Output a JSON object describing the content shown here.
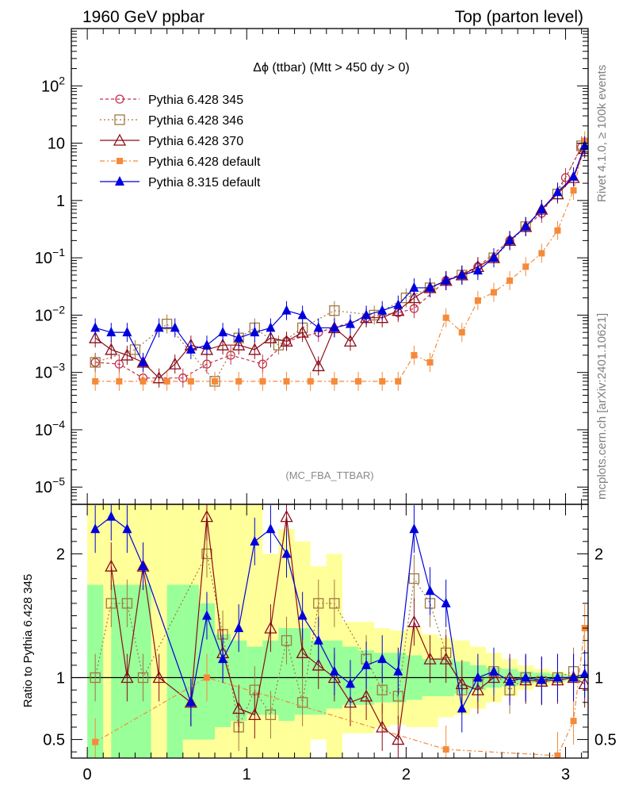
{
  "header": {
    "left": "1960 GeV ppbar",
    "right": "Top (parton level)"
  },
  "side_labels": {
    "rivet": "Rivet 4.1.0, ≥ 100k events",
    "mcplots": "mcplots.cern.ch [arXiv:2401.10621]"
  },
  "chart_data": {
    "type": "line",
    "title": "Δϕ (ttbar) (Mtt > 450 dy > 0)",
    "analysis_label": "(MC_FBA_TTBAR)",
    "x_range": [
      -0.1,
      3.1416
    ],
    "y_range": [
      5e-06,
      1000
    ],
    "y_scale": "log",
    "ratio_range": [
      0.35,
      2.4
    ],
    "ratio_ylabel": "Ratio to Pythia 6.428 345",
    "x_ticks": [
      "0",
      "1",
      "2",
      "3"
    ],
    "y_ticks": [
      "10^-5",
      "10^-4",
      "10^-3",
      "10^-2",
      "10^-1",
      "1",
      "10",
      "10^2"
    ],
    "ratio_ticks": [
      "0.5",
      "1",
      "2"
    ],
    "legend_position": "top-left",
    "series": [
      {
        "name": "Pythia 6.428 345",
        "color": "#c0304a",
        "dash": "4,3",
        "marker": "circle-open",
        "x": [
          0.05,
          0.2,
          0.35,
          0.6,
          0.75,
          0.9,
          1.1,
          1.25,
          1.45,
          1.75,
          1.95,
          2.05,
          2.25,
          2.45,
          2.65,
          2.85,
          3.0,
          3.1
        ],
        "y": [
          0.0015,
          0.0014,
          0.0008,
          0.0008,
          0.0014,
          0.002,
          0.0014,
          0.0035,
          0.005,
          0.009,
          0.011,
          0.013,
          0.04,
          0.07,
          0.2,
          0.6,
          2.5,
          8.5
        ]
      },
      {
        "name": "Pythia 6.428 346",
        "color": "#a07840",
        "dash": "2,3",
        "marker": "square-open",
        "x": [
          0.05,
          0.3,
          0.5,
          0.8,
          0.95,
          1.05,
          1.2,
          1.35,
          1.55,
          1.8,
          2.0,
          2.15,
          2.35,
          2.55,
          2.75,
          2.95,
          3.1
        ],
        "y": [
          0.0015,
          0.0025,
          0.007,
          0.0007,
          0.004,
          0.006,
          0.003,
          0.006,
          0.012,
          0.01,
          0.02,
          0.03,
          0.05,
          0.1,
          0.35,
          1.3,
          9.0
        ]
      },
      {
        "name": "Pythia 6.428 370",
        "color": "#8b0c1a",
        "dash": "",
        "marker": "triangle-open",
        "x": [
          0.05,
          0.15,
          0.25,
          0.35,
          0.45,
          0.55,
          0.65,
          0.75,
          0.85,
          0.95,
          1.05,
          1.15,
          1.25,
          1.35,
          1.45,
          1.55,
          1.65,
          1.75,
          1.85,
          1.95,
          2.05,
          2.15,
          2.25,
          2.35,
          2.45,
          2.55,
          2.65,
          2.75,
          2.85,
          2.95,
          3.05,
          3.12
        ],
        "y": [
          0.004,
          0.0025,
          0.002,
          0.0015,
          0.0008,
          0.0014,
          0.003,
          0.0025,
          0.003,
          0.003,
          0.0025,
          0.004,
          0.0035,
          0.005,
          0.0013,
          0.006,
          0.0035,
          0.009,
          0.009,
          0.012,
          0.02,
          0.03,
          0.04,
          0.05,
          0.07,
          0.1,
          0.2,
          0.35,
          0.7,
          1.3,
          2.5,
          8.0
        ]
      },
      {
        "name": "Pythia 6.428 default",
        "color": "#f58a3a",
        "dash": "6,3,2,3",
        "marker": "square-filled",
        "x": [
          0.05,
          0.2,
          0.35,
          0.5,
          0.65,
          0.8,
          0.95,
          1.1,
          1.25,
          1.4,
          1.55,
          1.7,
          1.85,
          1.95,
          2.05,
          2.15,
          2.25,
          2.35,
          2.45,
          2.55,
          2.65,
          2.75,
          2.85,
          2.95,
          3.05,
          3.12
        ],
        "y": [
          0.0007,
          0.0007,
          0.0007,
          0.0007,
          0.0007,
          0.0007,
          0.0007,
          0.0007,
          0.0007,
          0.0007,
          0.0007,
          0.0007,
          0.0007,
          0.0007,
          0.002,
          0.0015,
          0.009,
          0.005,
          0.018,
          0.025,
          0.04,
          0.07,
          0.12,
          0.3,
          1.5,
          11.0
        ]
      },
      {
        "name": "Pythia 8.315 default",
        "color": "#0000dd",
        "dash": "",
        "marker": "triangle-filled",
        "x": [
          0.05,
          0.15,
          0.25,
          0.35,
          0.45,
          0.55,
          0.65,
          0.75,
          0.85,
          0.95,
          1.05,
          1.15,
          1.25,
          1.35,
          1.45,
          1.55,
          1.65,
          1.75,
          1.85,
          1.95,
          2.05,
          2.15,
          2.25,
          2.35,
          2.45,
          2.55,
          2.65,
          2.75,
          2.85,
          2.95,
          3.05,
          3.12
        ],
        "y": [
          0.006,
          0.005,
          0.005,
          0.0015,
          0.006,
          0.006,
          0.0025,
          0.003,
          0.005,
          0.004,
          0.005,
          0.006,
          0.012,
          0.01,
          0.006,
          0.006,
          0.007,
          0.01,
          0.012,
          0.015,
          0.03,
          0.03,
          0.04,
          0.05,
          0.06,
          0.1,
          0.2,
          0.35,
          0.7,
          1.4,
          2.6,
          9.0
        ]
      }
    ],
    "ratio_series": [
      {
        "name": "Pythia 6.428 346",
        "x": [
          0.05,
          0.15,
          0.25,
          0.35,
          0.75,
          0.85,
          0.95,
          1.05,
          1.15,
          1.25,
          1.35,
          1.45,
          1.55,
          1.75,
          1.85,
          1.95,
          2.05,
          2.15,
          2.25,
          2.35,
          2.45,
          2.55,
          2.65,
          2.75,
          2.85,
          2.95,
          3.05
        ],
        "y": [
          1.0,
          1.6,
          1.6,
          1.0,
          2.0,
          1.35,
          0.6,
          0.9,
          0.7,
          1.3,
          0.8,
          1.6,
          1.6,
          1.15,
          0.9,
          0.85,
          1.8,
          1.6,
          1.2,
          0.9,
          0.95,
          1.05,
          0.9,
          1.0,
          0.97,
          1.0,
          1.05
        ]
      },
      {
        "name": "Pythia 6.428 370",
        "x": [
          0.15,
          0.25,
          0.35,
          0.45,
          0.65,
          0.75,
          0.85,
          0.95,
          1.05,
          1.15,
          1.25,
          1.35,
          1.45,
          1.55,
          1.65,
          1.75,
          1.85,
          1.95,
          2.05,
          2.15,
          2.25,
          2.35,
          2.45,
          2.55,
          2.65,
          2.75,
          2.85,
          2.95,
          3.05,
          3.12
        ],
        "y": [
          1.9,
          1.0,
          1.9,
          1.0,
          0.8,
          2.3,
          1.2,
          0.75,
          0.7,
          1.4,
          2.3,
          1.2,
          1.1,
          1.0,
          0.8,
          0.85,
          0.6,
          0.5,
          1.45,
          1.15,
          1.15,
          0.95,
          0.9,
          1.0,
          1.0,
          0.98,
          0.97,
          0.98,
          1.0,
          0.95
        ]
      },
      {
        "name": "Pythia 6.428 default",
        "x": [
          0.05,
          0.75,
          2.25,
          2.95,
          3.05,
          3.12
        ],
        "y": [
          0.48,
          1.0,
          0.42,
          0.37,
          0.65,
          1.4
        ]
      },
      {
        "name": "Pythia 8.315 default",
        "x": [
          0.05,
          0.15,
          0.25,
          0.35,
          0.65,
          0.75,
          0.85,
          0.95,
          1.05,
          1.15,
          1.25,
          1.35,
          1.45,
          1.55,
          1.65,
          1.75,
          1.85,
          1.95,
          2.05,
          2.15,
          2.25,
          2.35,
          2.45,
          2.55,
          2.65,
          2.75,
          2.85,
          2.95,
          3.05,
          3.12
        ],
        "y": [
          2.2,
          2.3,
          2.2,
          1.9,
          0.8,
          1.5,
          1.15,
          1.4,
          2.1,
          2.2,
          2.0,
          1.5,
          1.3,
          1.05,
          0.95,
          1.1,
          1.15,
          1.05,
          2.2,
          1.7,
          1.6,
          0.75,
          1.0,
          1.05,
          0.97,
          1.0,
          0.98,
          1.0,
          1.0,
          1.03
        ]
      }
    ],
    "uncertainty_bands": {
      "outer": [
        {
          "x": [
            0.0,
            0.1
          ],
          "lo": 0.35,
          "hi": 2.4
        },
        {
          "x": [
            0.1,
            0.2
          ],
          "lo": 0.35,
          "hi": 2.4
        },
        {
          "x": [
            0.2,
            0.3
          ],
          "lo": 0.35,
          "hi": 2.4
        },
        {
          "x": [
            0.3,
            0.4
          ],
          "lo": 0.35,
          "hi": 2.4
        },
        {
          "x": [
            0.4,
            0.5
          ],
          "lo": 0.35,
          "hi": 2.4
        },
        {
          "x": [
            0.5,
            0.6
          ],
          "lo": 0.35,
          "hi": 2.4
        },
        {
          "x": [
            0.6,
            0.7
          ],
          "lo": 0.35,
          "hi": 2.4
        },
        {
          "x": [
            0.7,
            0.8
          ],
          "lo": 0.35,
          "hi": 2.4
        },
        {
          "x": [
            0.8,
            0.9
          ],
          "lo": 0.35,
          "hi": 2.4
        },
        {
          "x": [
            0.9,
            1.0
          ],
          "lo": 0.35,
          "hi": 2.4
        },
        {
          "x": [
            1.0,
            1.1
          ],
          "lo": 0.35,
          "hi": 2.4
        },
        {
          "x": [
            1.1,
            1.2
          ],
          "lo": 0.35,
          "hi": 2.0
        },
        {
          "x": [
            1.2,
            1.3
          ],
          "lo": 0.35,
          "hi": 2.2
        },
        {
          "x": [
            1.3,
            1.4
          ],
          "lo": 0.35,
          "hi": 2.1
        },
        {
          "x": [
            1.4,
            1.5
          ],
          "lo": 0.5,
          "hi": 1.9
        },
        {
          "x": [
            1.5,
            1.6
          ],
          "lo": 0.35,
          "hi": 2.0
        },
        {
          "x": [
            1.6,
            1.7
          ],
          "lo": 0.55,
          "hi": 1.45
        },
        {
          "x": [
            1.7,
            1.8
          ],
          "lo": 0.55,
          "hi": 1.45
        },
        {
          "x": [
            1.8,
            1.9
          ],
          "lo": 0.6,
          "hi": 1.4
        },
        {
          "x": [
            1.9,
            2.0
          ],
          "lo": 0.62,
          "hi": 1.38
        },
        {
          "x": [
            2.0,
            2.1
          ],
          "lo": 0.6,
          "hi": 1.4
        },
        {
          "x": [
            2.1,
            2.2
          ],
          "lo": 0.6,
          "hi": 1.35
        },
        {
          "x": [
            2.2,
            2.3
          ],
          "lo": 0.68,
          "hi": 1.32
        },
        {
          "x": [
            2.3,
            2.4
          ],
          "lo": 0.7,
          "hi": 1.3
        },
        {
          "x": [
            2.4,
            2.5
          ],
          "lo": 0.75,
          "hi": 1.25
        },
        {
          "x": [
            2.5,
            2.6
          ],
          "lo": 0.8,
          "hi": 1.2
        },
        {
          "x": [
            2.6,
            2.7
          ],
          "lo": 0.85,
          "hi": 1.15
        },
        {
          "x": [
            2.7,
            2.8
          ],
          "lo": 0.9,
          "hi": 1.1
        },
        {
          "x": [
            2.8,
            2.9
          ],
          "lo": 0.93,
          "hi": 1.07
        },
        {
          "x": [
            2.9,
            3.0
          ],
          "lo": 0.95,
          "hi": 1.05
        },
        {
          "x": [
            3.0,
            3.1
          ],
          "lo": 0.97,
          "hi": 1.03
        }
      ],
      "inner": [
        {
          "x": [
            0.0,
            0.1
          ],
          "lo": 0.35,
          "hi": 1.75
        },
        {
          "x": [
            0.15,
            0.2
          ],
          "lo": 0.35,
          "hi": 1.75
        },
        {
          "x": [
            0.2,
            0.3
          ],
          "lo": 0.35,
          "hi": 1.75
        },
        {
          "x": [
            0.3,
            0.4
          ],
          "lo": 0.35,
          "hi": 1.75
        },
        {
          "x": [
            0.5,
            0.6
          ],
          "lo": 0.35,
          "hi": 1.75
        },
        {
          "x": [
            0.6,
            0.7
          ],
          "lo": 0.5,
          "hi": 1.75
        },
        {
          "x": [
            0.7,
            0.8
          ],
          "lo": 0.5,
          "hi": 1.6
        },
        {
          "x": [
            0.8,
            0.9
          ],
          "lo": 0.6,
          "hi": 1.35
        },
        {
          "x": [
            0.9,
            1.0
          ],
          "lo": 0.65,
          "hi": 1.3
        },
        {
          "x": [
            1.0,
            1.1
          ],
          "lo": 0.7,
          "hi": 1.25
        },
        {
          "x": [
            1.1,
            1.2
          ],
          "lo": 0.7,
          "hi": 1.3
        },
        {
          "x": [
            1.2,
            1.3
          ],
          "lo": 0.65,
          "hi": 1.4
        },
        {
          "x": [
            1.3,
            1.4
          ],
          "lo": 0.7,
          "hi": 1.4
        },
        {
          "x": [
            1.4,
            1.5
          ],
          "lo": 0.7,
          "hi": 1.3
        },
        {
          "x": [
            1.5,
            1.6
          ],
          "lo": 0.75,
          "hi": 1.3
        },
        {
          "x": [
            1.6,
            1.7
          ],
          "lo": 0.78,
          "hi": 1.25
        },
        {
          "x": [
            1.7,
            1.8
          ],
          "lo": 0.78,
          "hi": 1.22
        },
        {
          "x": [
            1.8,
            1.9
          ],
          "lo": 0.8,
          "hi": 1.2
        },
        {
          "x": [
            1.9,
            2.0
          ],
          "lo": 0.8,
          "hi": 1.2
        },
        {
          "x": [
            2.0,
            2.1
          ],
          "lo": 0.82,
          "hi": 1.18
        },
        {
          "x": [
            2.1,
            2.2
          ],
          "lo": 0.85,
          "hi": 1.15
        },
        {
          "x": [
            2.2,
            2.3
          ],
          "lo": 0.85,
          "hi": 1.15
        },
        {
          "x": [
            2.3,
            2.4
          ],
          "lo": 0.87,
          "hi": 1.13
        },
        {
          "x": [
            2.4,
            2.5
          ],
          "lo": 0.9,
          "hi": 1.1
        },
        {
          "x": [
            2.5,
            2.6
          ],
          "lo": 0.92,
          "hi": 1.08
        },
        {
          "x": [
            2.6,
            2.7
          ],
          "lo": 0.93,
          "hi": 1.07
        },
        {
          "x": [
            2.7,
            2.8
          ],
          "lo": 0.95,
          "hi": 1.05
        },
        {
          "x": [
            2.8,
            2.9
          ],
          "lo": 0.96,
          "hi": 1.04
        },
        {
          "x": [
            2.9,
            3.0
          ],
          "lo": 0.97,
          "hi": 1.03
        },
        {
          "x": [
            3.0,
            3.1
          ],
          "lo": 0.98,
          "hi": 1.02
        }
      ],
      "outer_color": "#ffff99",
      "inner_color": "#99ff99"
    }
  }
}
